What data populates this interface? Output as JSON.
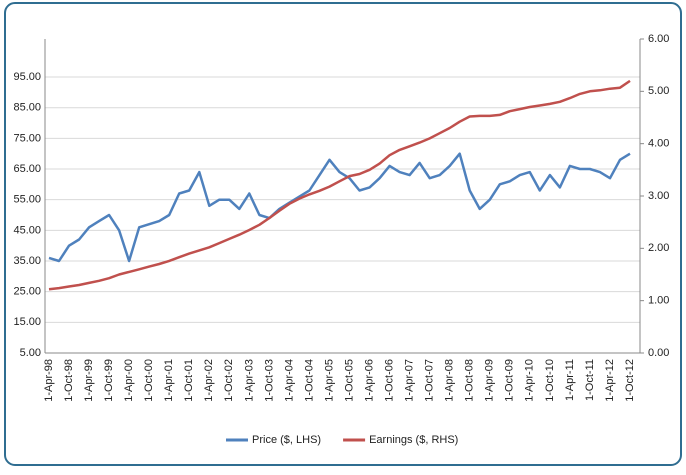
{
  "chart_data": {
    "type": "line",
    "categories": [
      "1-Apr-98",
      null,
      "1-Oct-98",
      null,
      "1-Apr-99",
      null,
      "1-Oct-99",
      null,
      "1-Apr-00",
      null,
      "1-Oct-00",
      null,
      "1-Apr-01",
      null,
      "1-Oct-01",
      null,
      "1-Apr-02",
      null,
      "1-Oct-02",
      null,
      "1-Apr-03",
      null,
      "1-Oct-03",
      null,
      "1-Apr-04",
      null,
      "1-Oct-04",
      null,
      "1-Apr-05",
      null,
      "1-Oct-05",
      null,
      "1-Apr-06",
      null,
      "1-Oct-06",
      null,
      "1-Apr-07",
      null,
      "1-Oct-07",
      null,
      "1-Apr-08",
      null,
      "1-Oct-08",
      null,
      "1-Apr-09",
      null,
      "1-Oct-09",
      null,
      "1-Apr-10",
      null,
      "1-Oct-10",
      null,
      "1-Apr-11",
      null,
      "1-Oct-11",
      null,
      "1-Apr-12",
      null,
      "1-Oct-12"
    ],
    "series": [
      {
        "name": "Price ($, LHS)",
        "color": "#4f81bd",
        "axis": "y",
        "values": [
          36,
          35,
          40,
          42,
          46,
          48,
          50,
          45,
          35,
          46,
          47,
          48,
          50,
          57,
          58,
          64,
          53,
          55,
          55,
          52,
          57,
          50,
          49,
          52,
          54,
          56,
          58,
          63,
          68,
          64,
          62,
          58,
          59,
          62,
          66,
          64,
          63,
          67,
          62,
          63,
          66,
          70,
          58,
          52,
          55,
          60,
          61,
          63,
          64,
          58,
          63,
          59,
          66,
          65,
          65,
          64,
          62,
          68,
          70
        ]
      },
      {
        "name": "Earnings ($, RHS)",
        "color": "#c0504d",
        "axis": "y2",
        "values": [
          1.22,
          1.24,
          1.27,
          1.3,
          1.34,
          1.38,
          1.43,
          1.5,
          1.55,
          1.6,
          1.65,
          1.7,
          1.76,
          1.83,
          1.9,
          1.96,
          2.02,
          2.1,
          2.18,
          2.26,
          2.35,
          2.45,
          2.58,
          2.72,
          2.85,
          2.95,
          3.03,
          3.1,
          3.18,
          3.28,
          3.38,
          3.42,
          3.5,
          3.62,
          3.78,
          3.88,
          3.95,
          4.02,
          4.1,
          4.2,
          4.3,
          4.42,
          4.52,
          4.53,
          4.53,
          4.55,
          4.62,
          4.66,
          4.7,
          4.73,
          4.76,
          4.8,
          4.87,
          4.95,
          5.0,
          5.02,
          5.05,
          5.07,
          5.2
        ]
      }
    ],
    "ylim": [
      5,
      107.4
    ],
    "yticks": [
      {
        "value": 5,
        "label": "5.00"
      },
      {
        "value": 15,
        "label": "15.00"
      },
      {
        "value": 25,
        "label": "25.00"
      },
      {
        "value": 35,
        "label": "35.00"
      },
      {
        "value": 45,
        "label": "45.00"
      },
      {
        "value": 55,
        "label": "55.00"
      },
      {
        "value": 65,
        "label": "65.00"
      },
      {
        "value": 75,
        "label": "75.00"
      },
      {
        "value": 85,
        "label": "85.00"
      },
      {
        "value": 95,
        "label": "95.00"
      }
    ],
    "y2lim": [
      0,
      6
    ],
    "y2ticks": [
      {
        "value": 0,
        "label": "0.00"
      },
      {
        "value": 1,
        "label": "1.00"
      },
      {
        "value": 2,
        "label": "2.00"
      },
      {
        "value": 3,
        "label": "3.00"
      },
      {
        "value": 4,
        "label": "4.00"
      },
      {
        "value": 5,
        "label": "5.00"
      },
      {
        "value": 6,
        "label": "6.00"
      }
    ],
    "grid": true
  }
}
